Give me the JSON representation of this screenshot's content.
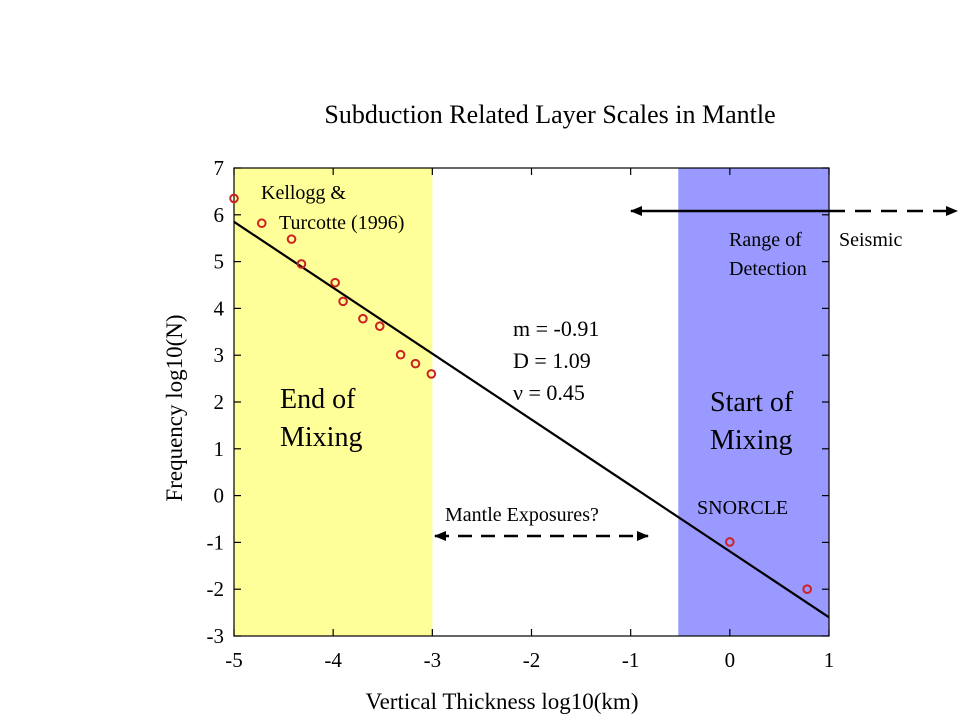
{
  "chart_data": {
    "type": "scatter",
    "title": "Subduction Related Layer Scales in Mantle",
    "xlabel": "Vertical Thickness log10(km)",
    "ylabel": "Frequency  log10(N)",
    "xlim": [
      -5,
      1
    ],
    "ylim": [
      -3,
      7
    ],
    "xticks": [
      -5,
      -4,
      -3,
      -2,
      -1,
      0,
      1
    ],
    "yticks": [
      -3,
      -2,
      -1,
      0,
      1,
      2,
      3,
      4,
      5,
      6,
      7
    ],
    "grid": false,
    "colors": {
      "end_region": "#ffff99",
      "start_region": "#9999ff",
      "points": "#cc2222",
      "line": "#000000"
    },
    "regions": [
      {
        "key": "end",
        "x_range": [
          -5,
          -3
        ],
        "label_lines": [
          "End of",
          "Mixing"
        ]
      },
      {
        "key": "start",
        "x_range": [
          -0.52,
          1
        ],
        "label_lines": [
          "Start of",
          "Mixing"
        ]
      }
    ],
    "series": [
      {
        "name": "Kellogg & Turcotte (1996)",
        "label_lines": [
          "Kellogg &",
          "Turcotte (1996)"
        ],
        "points": [
          {
            "x": -5.0,
            "y": 6.35
          },
          {
            "x": -4.72,
            "y": 5.82
          },
          {
            "x": -4.42,
            "y": 5.48
          },
          {
            "x": -4.32,
            "y": 4.95
          },
          {
            "x": -3.98,
            "y": 4.55
          },
          {
            "x": -3.9,
            "y": 4.15
          },
          {
            "x": -3.7,
            "y": 3.78
          },
          {
            "x": -3.53,
            "y": 3.62
          },
          {
            "x": -3.32,
            "y": 3.01
          },
          {
            "x": -3.17,
            "y": 2.82
          },
          {
            "x": -3.01,
            "y": 2.6
          }
        ]
      },
      {
        "name": "SNORCLE",
        "points": [
          {
            "x": 0.0,
            "y": -0.99
          },
          {
            "x": 0.78,
            "y": -2.0
          }
        ]
      }
    ],
    "fit_line": {
      "x": [
        -5,
        1
      ],
      "y": [
        5.85,
        -2.6
      ]
    },
    "fit_stats": [
      "m = -0.91",
      "D = 1.09",
      "ν = 0.45"
    ],
    "annotations": {
      "seismic": "Seismic",
      "range_lines": [
        "Range of",
        "Detection"
      ],
      "exposures": "Mantle  Exposures?"
    }
  }
}
